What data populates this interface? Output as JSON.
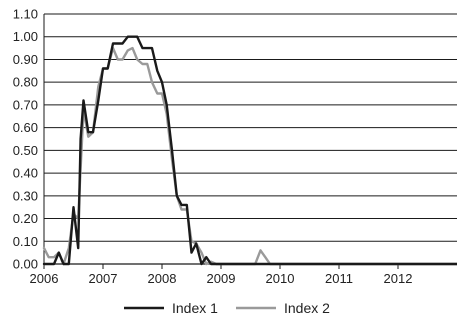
{
  "chart_data": {
    "type": "line",
    "title": "",
    "xlabel": "",
    "ylabel": "",
    "x_ticks": [
      "2006",
      "2007",
      "2008",
      "2009",
      "2010",
      "2011",
      "2012"
    ],
    "y_ticks": [
      "0.00",
      "0.10",
      "0.20",
      "0.30",
      "0.40",
      "0.50",
      "0.60",
      "0.70",
      "0.80",
      "0.90",
      "1.00",
      "1.10"
    ],
    "xlim": [
      2006.0,
      2013.0
    ],
    "ylim": [
      0,
      1.1
    ],
    "grid": "horizontal",
    "legend_position": "bottom-center",
    "series": [
      {
        "name": "Index 1",
        "color": "#1a1a1a",
        "x": [
          2006.0,
          2006.17,
          2006.25,
          2006.33,
          2006.42,
          2006.5,
          2006.58,
          2006.62,
          2006.67,
          2006.75,
          2006.83,
          2006.92,
          2007.0,
          2007.08,
          2007.17,
          2007.25,
          2007.33,
          2007.42,
          2007.5,
          2007.58,
          2007.67,
          2007.75,
          2007.83,
          2007.92,
          2008.0,
          2008.08,
          2008.17,
          2008.25,
          2008.33,
          2008.42,
          2008.5,
          2008.58,
          2008.67,
          2008.75,
          2008.83,
          2008.92,
          2009.0,
          2009.08,
          2009.17,
          2009.25,
          2009.33,
          2009.42,
          2009.5,
          2009.75,
          2010.0,
          2011.0,
          2012.0,
          2013.0
        ],
        "values": [
          0.0,
          0.0,
          0.05,
          0.0,
          0.0,
          0.25,
          0.07,
          0.55,
          0.72,
          0.58,
          0.58,
          0.72,
          0.86,
          0.86,
          0.97,
          0.97,
          0.97,
          1.0,
          1.0,
          1.0,
          0.95,
          0.95,
          0.95,
          0.85,
          0.8,
          0.7,
          0.5,
          0.3,
          0.26,
          0.26,
          0.05,
          0.09,
          0.0,
          0.03,
          0.0,
          0.0,
          0.0,
          0.0,
          0.0,
          0.0,
          0.0,
          0.0,
          0.0,
          0.0,
          0.0,
          0.0,
          0.0,
          0.0
        ]
      },
      {
        "name": "Index 2",
        "color": "#9a9a9a",
        "x": [
          2006.0,
          2006.08,
          2006.17,
          2006.25,
          2006.33,
          2006.42,
          2006.5,
          2006.58,
          2006.67,
          2006.75,
          2006.83,
          2006.92,
          2007.0,
          2007.08,
          2007.17,
          2007.25,
          2007.33,
          2007.42,
          2007.5,
          2007.58,
          2007.67,
          2007.75,
          2007.83,
          2007.92,
          2008.0,
          2008.08,
          2008.17,
          2008.25,
          2008.33,
          2008.42,
          2008.5,
          2008.58,
          2008.67,
          2008.75,
          2008.83,
          2008.92,
          2009.0,
          2009.08,
          2009.17,
          2009.25,
          2009.33,
          2009.42,
          2009.5,
          2009.58,
          2009.67,
          2009.75,
          2009.83,
          2009.92,
          2010.0,
          2010.08,
          2010.17,
          2010.25,
          2010.33,
          2010.42,
          2010.5,
          2010.58,
          2010.67,
          2010.75,
          2010.83,
          2010.92,
          2011.0,
          2011.08,
          2011.17,
          2011.25,
          2011.33,
          2011.42,
          2011.5,
          2011.58,
          2011.67,
          2011.75,
          2011.83,
          2011.92,
          2012.0,
          2013.0
        ],
        "values": [
          0.07,
          0.03,
          0.03,
          0.05,
          0.0,
          0.07,
          0.22,
          0.2,
          0.68,
          0.56,
          0.58,
          0.78,
          0.86,
          0.86,
          0.95,
          0.9,
          0.9,
          0.94,
          0.95,
          0.9,
          0.88,
          0.88,
          0.8,
          0.75,
          0.75,
          0.66,
          0.46,
          0.3,
          0.24,
          0.24,
          0.1,
          0.09,
          0.05,
          0.0,
          0.01,
          0.0,
          0.0,
          0.0,
          0.0,
          0.0,
          0.0,
          0.0,
          0.0,
          0.0,
          0.06,
          0.03,
          0.0,
          0.0,
          0.0,
          0.0,
          0.0,
          0.0,
          0.0,
          0.0,
          0.0,
          0.0,
          0.0,
          0.0,
          0.0,
          0.0,
          0.0,
          0.0,
          0.0,
          0.0,
          0.0,
          0.0,
          0.0,
          0.0,
          0.0,
          0.0,
          0.0,
          0.0,
          0.0,
          0.0
        ]
      }
    ]
  }
}
